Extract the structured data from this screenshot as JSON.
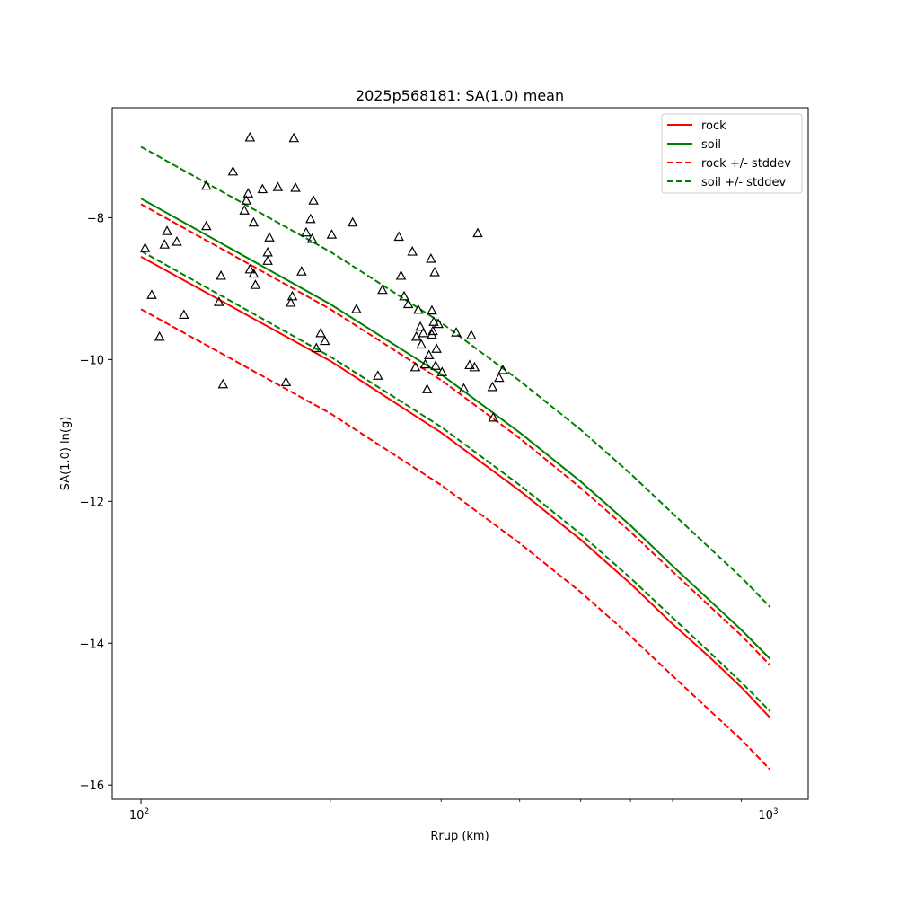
{
  "chart_data": {
    "type": "scatter",
    "title": "2025p568181: SA(1.0) mean",
    "xlabel": "Rrup (km)",
    "ylabel": "SA(1.0) ln(g)",
    "xscale": "log",
    "xlim": [
      90,
      1150
    ],
    "ylim": [
      -16.2,
      -6.45
    ],
    "x_ticks": [
      {
        "value": 100,
        "base": "10",
        "exp": "2"
      },
      {
        "value": 1000,
        "base": "10",
        "exp": "3"
      }
    ],
    "y_ticks": [
      {
        "value": -16,
        "label": "−16"
      },
      {
        "value": -14,
        "label": "−14"
      },
      {
        "value": -12,
        "label": "−12"
      },
      {
        "value": -10,
        "label": "−10"
      },
      {
        "value": -8,
        "label": "−8"
      }
    ],
    "legend_position": "top-right",
    "series": [
      {
        "name": "rock",
        "kind": "line",
        "color": "#ff0000",
        "dash": "solid",
        "x": [
          100,
          200,
          300,
          400,
          500,
          600,
          700,
          800,
          900,
          1000
        ],
        "y": [
          -8.55,
          -10.02,
          -11.03,
          -11.85,
          -12.54,
          -13.16,
          -13.73,
          -14.19,
          -14.62,
          -15.05
        ]
      },
      {
        "name": "soil",
        "kind": "line",
        "color": "#008000",
        "dash": "solid",
        "x": [
          100,
          200,
          300,
          400,
          500,
          600,
          700,
          800,
          900,
          1000
        ],
        "y": [
          -7.73,
          -9.22,
          -10.21,
          -11.03,
          -11.72,
          -12.34,
          -12.91,
          -13.39,
          -13.81,
          -14.22
        ]
      },
      {
        "name": "rock +/- stddev",
        "kind": "line",
        "color": "#ff0000",
        "dash": "dashed",
        "x": [
          100,
          200,
          300,
          400,
          500,
          600,
          700,
          800,
          900,
          1000
        ],
        "y": [
          -7.81,
          -9.29,
          -10.29,
          -11.11,
          -11.81,
          -12.43,
          -12.99,
          -13.47,
          -13.89,
          -14.31
        ]
      },
      {
        "name": "",
        "kind": "line",
        "color": "#ff0000",
        "dash": "dashed",
        "x": [
          100,
          200,
          300,
          400,
          500,
          600,
          700,
          800,
          900,
          1000
        ],
        "y": [
          -9.29,
          -10.76,
          -11.77,
          -12.59,
          -13.28,
          -13.9,
          -14.46,
          -14.94,
          -15.36,
          -15.78
        ]
      },
      {
        "name": "soil +/- stddev",
        "kind": "line",
        "color": "#008000",
        "dash": "dashed",
        "x": [
          100,
          200,
          300,
          400,
          500,
          600,
          700,
          800,
          900,
          1000
        ],
        "y": [
          -7.0,
          -8.48,
          -9.48,
          -10.3,
          -10.99,
          -11.61,
          -12.17,
          -12.65,
          -13.07,
          -13.49
        ]
      },
      {
        "name": "",
        "kind": "line",
        "color": "#008000",
        "dash": "dashed",
        "x": [
          100,
          200,
          300,
          400,
          500,
          600,
          700,
          800,
          900,
          1000
        ],
        "y": [
          -8.47,
          -9.96,
          -10.95,
          -11.77,
          -12.46,
          -13.08,
          -13.64,
          -14.12,
          -14.55,
          -14.96
        ]
      }
    ],
    "observations": {
      "marker": "triangle-open",
      "color": "#000000",
      "points": [
        [
          101.5,
          -8.43
        ],
        [
          104,
          -9.09
        ],
        [
          107,
          -9.68
        ],
        [
          109,
          -8.38
        ],
        [
          110,
          -8.19
        ],
        [
          114,
          -8.34
        ],
        [
          117,
          -9.37
        ],
        [
          127,
          -7.55
        ],
        [
          127,
          -8.12
        ],
        [
          133,
          -9.19
        ],
        [
          134,
          -8.82
        ],
        [
          135,
          -10.35
        ],
        [
          140,
          -7.35
        ],
        [
          146,
          -7.9
        ],
        [
          147,
          -7.76
        ],
        [
          148,
          -7.66
        ],
        [
          149,
          -8.73
        ],
        [
          149,
          -6.87
        ],
        [
          151,
          -8.07
        ],
        [
          151,
          -8.79
        ],
        [
          152,
          -8.95
        ],
        [
          156,
          -7.6
        ],
        [
          159,
          -8.61
        ],
        [
          159,
          -8.49
        ],
        [
          160,
          -8.28
        ],
        [
          165,
          -7.57
        ],
        [
          170,
          -10.32
        ],
        [
          173,
          -9.2
        ],
        [
          174,
          -9.11
        ],
        [
          175,
          -6.88
        ],
        [
          176,
          -7.58
        ],
        [
          180,
          -8.76
        ],
        [
          183,
          -8.21
        ],
        [
          186,
          -8.02
        ],
        [
          187,
          -8.3
        ],
        [
          188,
          -7.76
        ],
        [
          190,
          -9.84
        ],
        [
          193,
          -9.63
        ],
        [
          196,
          -9.74
        ],
        [
          201,
          -8.24
        ],
        [
          217,
          -8.07
        ],
        [
          220,
          -9.29
        ],
        [
          238,
          -10.23
        ],
        [
          242,
          -9.02
        ],
        [
          257,
          -8.27
        ],
        [
          259,
          -8.82
        ],
        [
          262,
          -9.11
        ],
        [
          266,
          -9.22
        ],
        [
          270,
          -8.48
        ],
        [
          273,
          -10.11
        ],
        [
          274,
          -9.68
        ],
        [
          276,
          -9.3
        ],
        [
          278,
          -9.54
        ],
        [
          279,
          -9.79
        ],
        [
          281,
          -9.63
        ],
        [
          283,
          -10.07
        ],
        [
          285,
          -10.42
        ],
        [
          287,
          -9.94
        ],
        [
          289,
          -8.58
        ],
        [
          290,
          -9.31
        ],
        [
          290,
          -9.65
        ],
        [
          291,
          -9.6
        ],
        [
          292,
          -9.47
        ],
        [
          293,
          -8.77
        ],
        [
          294,
          -10.09
        ],
        [
          295,
          -9.85
        ],
        [
          297,
          -9.5
        ],
        [
          301,
          -10.18
        ],
        [
          317,
          -9.62
        ],
        [
          326,
          -10.41
        ],
        [
          333,
          -10.08
        ],
        [
          335,
          -9.66
        ],
        [
          339,
          -10.11
        ],
        [
          343,
          -8.22
        ],
        [
          362,
          -10.39
        ],
        [
          363,
          -10.82
        ],
        [
          371,
          -10.26
        ],
        [
          376,
          -10.15
        ]
      ]
    },
    "legend": [
      {
        "label": "rock",
        "color": "#ff0000",
        "dash": "solid"
      },
      {
        "label": "soil",
        "color": "#008000",
        "dash": "solid"
      },
      {
        "label": "rock +/- stddev",
        "color": "#ff0000",
        "dash": "dashed"
      },
      {
        "label": "soil +/- stddev",
        "color": "#008000",
        "dash": "dashed"
      }
    ]
  }
}
